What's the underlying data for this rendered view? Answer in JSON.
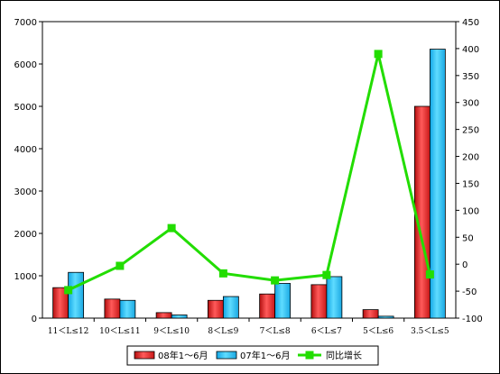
{
  "chart_data": {
    "type": "bar",
    "categories": [
      "11＜L≤12",
      "10＜L≤11",
      "9＜L≤10",
      "8＜L≤9",
      "7＜L≤8",
      "6＜L≤7",
      "5＜L≤6",
      "3.5＜L≤5"
    ],
    "series": [
      {
        "name": "08年1～6月",
        "type": "bar",
        "axis": "left",
        "color": "#e8332b",
        "values": [
          720,
          450,
          130,
          420,
          570,
          790,
          200,
          5000
        ]
      },
      {
        "name": "07年1～6月",
        "type": "bar",
        "axis": "left",
        "color": "#33ccff",
        "values": [
          1080,
          420,
          75,
          510,
          820,
          980,
          45,
          6350
        ]
      },
      {
        "name": "同比增长",
        "type": "line",
        "axis": "right",
        "color": "#22dd00",
        "values": [
          -48,
          -3,
          67,
          -17,
          -30,
          -20,
          390,
          -19
        ]
      }
    ],
    "y_left": {
      "min": 0,
      "max": 7000,
      "ticks": [
        0,
        1000,
        2000,
        3000,
        4000,
        5000,
        6000,
        7000
      ]
    },
    "y_right": {
      "min": -100,
      "max": 450,
      "ticks": [
        -100,
        -50,
        0,
        50,
        100,
        150,
        200,
        250,
        300,
        350,
        400,
        450
      ]
    },
    "grid": false,
    "legend": "bottom"
  }
}
